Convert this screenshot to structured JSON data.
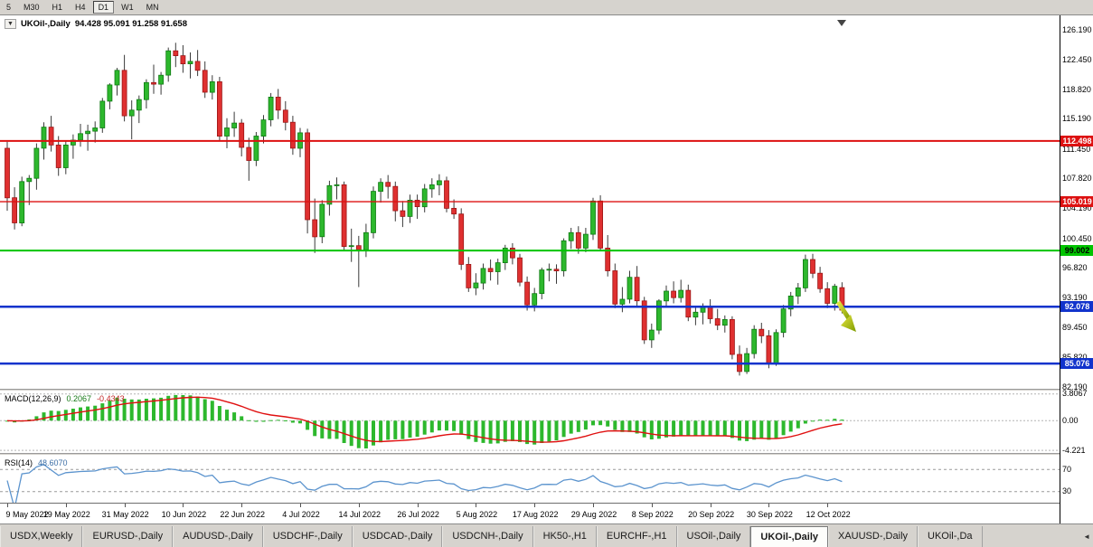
{
  "toolbar": {
    "timeframes": [
      "5",
      "M30",
      "H1",
      "H4",
      "D1",
      "W1",
      "MN"
    ],
    "active": "D1"
  },
  "chart": {
    "menu_icon": "▼",
    "symbol_title": "UKOil-,Daily",
    "ohlc": "94.428 95.091 91.258 91.658",
    "price_axis_labels": [
      "126.190",
      "122.450",
      "118.820",
      "115.190",
      "111.450",
      "107.820",
      "104.190",
      "100.450",
      "96.820",
      "93.190",
      "89.450",
      "85.820",
      "82.190"
    ],
    "price_top": 127.97,
    "price_bottom": 81.97,
    "hlines": [
      {
        "price": 112.498,
        "label": "112.498",
        "color": "#dd1111",
        "text": "#ffffff",
        "width": 2
      },
      {
        "price": 105.019,
        "label": "105.019",
        "color": "#dd1111",
        "text": "#ffffff",
        "width": 1.4
      },
      {
        "price": 99.002,
        "label": "99.002",
        "color": "#00c400",
        "text": "#000000",
        "width": 2
      },
      {
        "price": 92.078,
        "label": "92.078",
        "color": "#1133cc",
        "text": "#ffffff",
        "width": 2.5
      },
      {
        "price": 85.076,
        "label": "85.076",
        "color": "#1133cc",
        "text": "#ffffff",
        "width": 2.5
      }
    ],
    "colors": {
      "bull": "#2db82d",
      "bear": "#df3030",
      "bull_border": "#0e7a12",
      "bear_border": "#9b1515",
      "wick": "#3a3a3a",
      "arrow_light": "#e8e642",
      "arrow_dark": "#7e9c00"
    },
    "chart_data": {
      "type": "candlestick",
      "symbol": "UKOil-",
      "timeframe": "Daily",
      "ohlc": [
        [
          111.6,
          112.4,
          103.9,
          105.5
        ],
        [
          105.5,
          106.8,
          101.6,
          102.4
        ],
        [
          102.4,
          108.1,
          102.0,
          107.5
        ],
        [
          107.5,
          108.3,
          104.6,
          107.9
        ],
        [
          107.9,
          112.2,
          106.5,
          111.6
        ],
        [
          111.6,
          114.8,
          110.2,
          114.2
        ],
        [
          114.2,
          115.6,
          111.2,
          112.0
        ],
        [
          112.0,
          113.1,
          108.2,
          109.2
        ],
        [
          109.2,
          112.5,
          108.4,
          112.0
        ],
        [
          112.0,
          113.3,
          110.3,
          112.6
        ],
        [
          112.6,
          114.6,
          111.8,
          113.4
        ],
        [
          113.4,
          114.5,
          111.3,
          113.7
        ],
        [
          113.7,
          114.9,
          112.3,
          114.1
        ],
        [
          114.1,
          117.8,
          113.5,
          117.4
        ],
        [
          117.4,
          119.6,
          116.4,
          119.4
        ],
        [
          119.4,
          121.5,
          118.1,
          121.2
        ],
        [
          121.2,
          123.1,
          114.9,
          115.6
        ],
        [
          115.6,
          117.5,
          112.7,
          116.3
        ],
        [
          116.3,
          118.1,
          114.7,
          117.6
        ],
        [
          117.6,
          120.1,
          116.5,
          119.7
        ],
        [
          119.7,
          121.9,
          118.3,
          119.5
        ],
        [
          119.5,
          121.0,
          118.2,
          120.6
        ],
        [
          120.6,
          124.0,
          119.8,
          123.6
        ],
        [
          123.6,
          124.6,
          121.6,
          123.0
        ],
        [
          123.0,
          124.3,
          120.9,
          122.0
        ],
        [
          122.0,
          123.4,
          120.2,
          122.3
        ],
        [
          122.3,
          123.7,
          120.5,
          121.2
        ],
        [
          121.2,
          122.3,
          117.8,
          118.5
        ],
        [
          118.5,
          120.6,
          117.6,
          119.8
        ],
        [
          119.8,
          120.4,
          112.5,
          113.1
        ],
        [
          113.1,
          115.3,
          111.6,
          114.1
        ],
        [
          114.1,
          116.1,
          113.0,
          114.7
        ],
        [
          114.7,
          115.2,
          110.6,
          111.7
        ],
        [
          111.7,
          112.9,
          107.6,
          110.1
        ],
        [
          110.1,
          113.6,
          109.4,
          113.1
        ],
        [
          113.1,
          115.7,
          112.2,
          115.1
        ],
        [
          115.1,
          118.4,
          114.3,
          117.9
        ],
        [
          117.9,
          118.9,
          115.2,
          116.3
        ],
        [
          116.3,
          117.4,
          113.8,
          114.8
        ],
        [
          114.8,
          115.6,
          110.8,
          111.6
        ],
        [
          111.6,
          114.1,
          110.5,
          113.5
        ],
        [
          113.5,
          114.0,
          101.1,
          102.8
        ],
        [
          102.8,
          105.4,
          98.7,
          100.7
        ],
        [
          100.7,
          105.2,
          99.9,
          104.7
        ],
        [
          104.7,
          107.6,
          103.3,
          107.0
        ],
        [
          107.0,
          108.0,
          105.3,
          107.1
        ],
        [
          107.1,
          107.5,
          98.9,
          99.5
        ],
        [
          99.5,
          101.7,
          97.6,
          99.6
        ],
        [
          99.6,
          100.8,
          94.5,
          99.1
        ],
        [
          99.1,
          102.3,
          98.2,
          101.2
        ],
        [
          101.2,
          106.9,
          100.5,
          106.3
        ],
        [
          106.3,
          107.9,
          104.9,
          107.4
        ],
        [
          107.4,
          108.3,
          105.4,
          106.9
        ],
        [
          106.9,
          107.5,
          102.6,
          103.9
        ],
        [
          103.9,
          105.1,
          101.9,
          103.2
        ],
        [
          103.2,
          105.9,
          102.4,
          105.2
        ],
        [
          105.2,
          105.9,
          102.9,
          104.4
        ],
        [
          104.4,
          107.2,
          103.7,
          106.6
        ],
        [
          106.6,
          107.9,
          105.5,
          107.1
        ],
        [
          107.1,
          108.4,
          105.8,
          107.6
        ],
        [
          107.6,
          108.1,
          103.7,
          104.2
        ],
        [
          104.2,
          105.3,
          102.9,
          103.5
        ],
        [
          103.5,
          104.2,
          96.6,
          97.3
        ],
        [
          97.3,
          98.2,
          93.9,
          94.4
        ],
        [
          94.4,
          96.2,
          93.5,
          95.0
        ],
        [
          95.0,
          97.4,
          94.2,
          96.8
        ],
        [
          96.8,
          97.9,
          95.3,
          96.4
        ],
        [
          96.4,
          98.0,
          94.8,
          97.5
        ],
        [
          97.5,
          99.7,
          96.6,
          99.3
        ],
        [
          99.3,
          99.9,
          97.3,
          98.1
        ],
        [
          98.1,
          98.6,
          94.6,
          95.1
        ],
        [
          95.1,
          95.8,
          91.6,
          92.3
        ],
        [
          92.3,
          94.4,
          91.5,
          93.7
        ],
        [
          93.7,
          96.9,
          93.0,
          96.6
        ],
        [
          96.6,
          97.4,
          95.2,
          96.7
        ],
        [
          96.7,
          97.3,
          94.9,
          96.5
        ],
        [
          96.5,
          100.5,
          95.8,
          100.2
        ],
        [
          100.2,
          101.8,
          99.2,
          101.2
        ],
        [
          101.2,
          102.0,
          98.6,
          99.3
        ],
        [
          99.3,
          101.8,
          98.8,
          101.0
        ],
        [
          101.0,
          105.5,
          100.3,
          105.1
        ],
        [
          105.1,
          105.8,
          98.9,
          99.3
        ],
        [
          99.3,
          100.9,
          95.8,
          96.5
        ],
        [
          96.5,
          97.4,
          91.9,
          92.4
        ],
        [
          92.4,
          94.5,
          91.4,
          93.0
        ],
        [
          93.0,
          96.5,
          92.5,
          95.7
        ],
        [
          95.7,
          97.1,
          92.1,
          92.8
        ],
        [
          92.8,
          93.3,
          87.5,
          88.0
        ],
        [
          88.0,
          90.0,
          87.0,
          89.2
        ],
        [
          89.2,
          93.0,
          88.7,
          92.8
        ],
        [
          92.8,
          94.7,
          92.0,
          94.0
        ],
        [
          94.0,
          95.2,
          92.5,
          93.2
        ],
        [
          93.2,
          95.4,
          92.6,
          94.1
        ],
        [
          94.1,
          94.8,
          90.3,
          90.8
        ],
        [
          90.8,
          92.2,
          89.8,
          91.4
        ],
        [
          91.4,
          92.5,
          89.9,
          92.0
        ],
        [
          92.0,
          93.0,
          90.0,
          90.6
        ],
        [
          90.6,
          91.8,
          89.2,
          89.8
        ],
        [
          89.8,
          91.0,
          88.9,
          90.5
        ],
        [
          90.5,
          90.9,
          85.6,
          86.2
        ],
        [
          86.2,
          87.3,
          83.6,
          84.1
        ],
        [
          84.1,
          87.0,
          83.8,
          86.3
        ],
        [
          86.3,
          89.8,
          85.7,
          89.3
        ],
        [
          89.3,
          90.1,
          87.6,
          88.5
        ],
        [
          88.5,
          89.2,
          84.5,
          85.1
        ],
        [
          85.1,
          89.3,
          84.8,
          88.9
        ],
        [
          88.9,
          92.3,
          88.3,
          91.8
        ],
        [
          91.8,
          93.9,
          90.9,
          93.4
        ],
        [
          93.4,
          95.0,
          92.4,
          94.4
        ],
        [
          94.4,
          98.5,
          93.9,
          97.9
        ],
        [
          97.9,
          98.6,
          95.6,
          96.2
        ],
        [
          96.2,
          97.0,
          93.8,
          94.3
        ],
        [
          94.3,
          95.1,
          91.9,
          92.5
        ],
        [
          92.5,
          94.9,
          91.6,
          94.6
        ],
        [
          94.428,
          95.091,
          91.258,
          91.658
        ]
      ]
    }
  },
  "macd": {
    "label": "MACD(12,26,9)",
    "value_main": "0.2067",
    "value_signal": "-0.4343",
    "level_max": 3.8067,
    "level_max_label": "3.8067",
    "level_zero_label": "0.00",
    "level_min": -4.221,
    "level_min_label": "-4.221",
    "hist_color": "#2db82d",
    "signal_color": "#e01010"
  },
  "rsi": {
    "label": "RSI(14)",
    "value": "48.6070",
    "levels": [
      70,
      30
    ],
    "level_labels": [
      "70",
      "30"
    ],
    "line_color": "#5c94ce"
  },
  "dates": [
    "9 May 2022",
    "19 May 2022",
    "31 May 2022",
    "10 Jun 2022",
    "22 Jun 2022",
    "4 Jul 2022",
    "14 Jul 2022",
    "26 Jul 2022",
    "5 Aug 2022",
    "17 Aug 2022",
    "29 Aug 2022",
    "8 Sep 2022",
    "20 Sep 2022",
    "30 Sep 2022",
    "12 Oct 2022"
  ],
  "tabs": {
    "scroll_icon": "◄",
    "active_index": 9,
    "items": [
      {
        "label": "USDX,Weekly"
      },
      {
        "label": "EURUSD-,Daily"
      },
      {
        "label": "AUDUSD-,Daily"
      },
      {
        "label": "USDCHF-,Daily"
      },
      {
        "label": "USDCAD-,Daily"
      },
      {
        "label": "USDCNH-,Daily"
      },
      {
        "label": "HK50-,H1"
      },
      {
        "label": "EURCHF-,H1"
      },
      {
        "label": "USOil-,Daily"
      },
      {
        "label": "UKOil-,Daily"
      },
      {
        "label": "XAUUSD-,Daily"
      },
      {
        "label": "UKOil-,Da"
      }
    ]
  }
}
